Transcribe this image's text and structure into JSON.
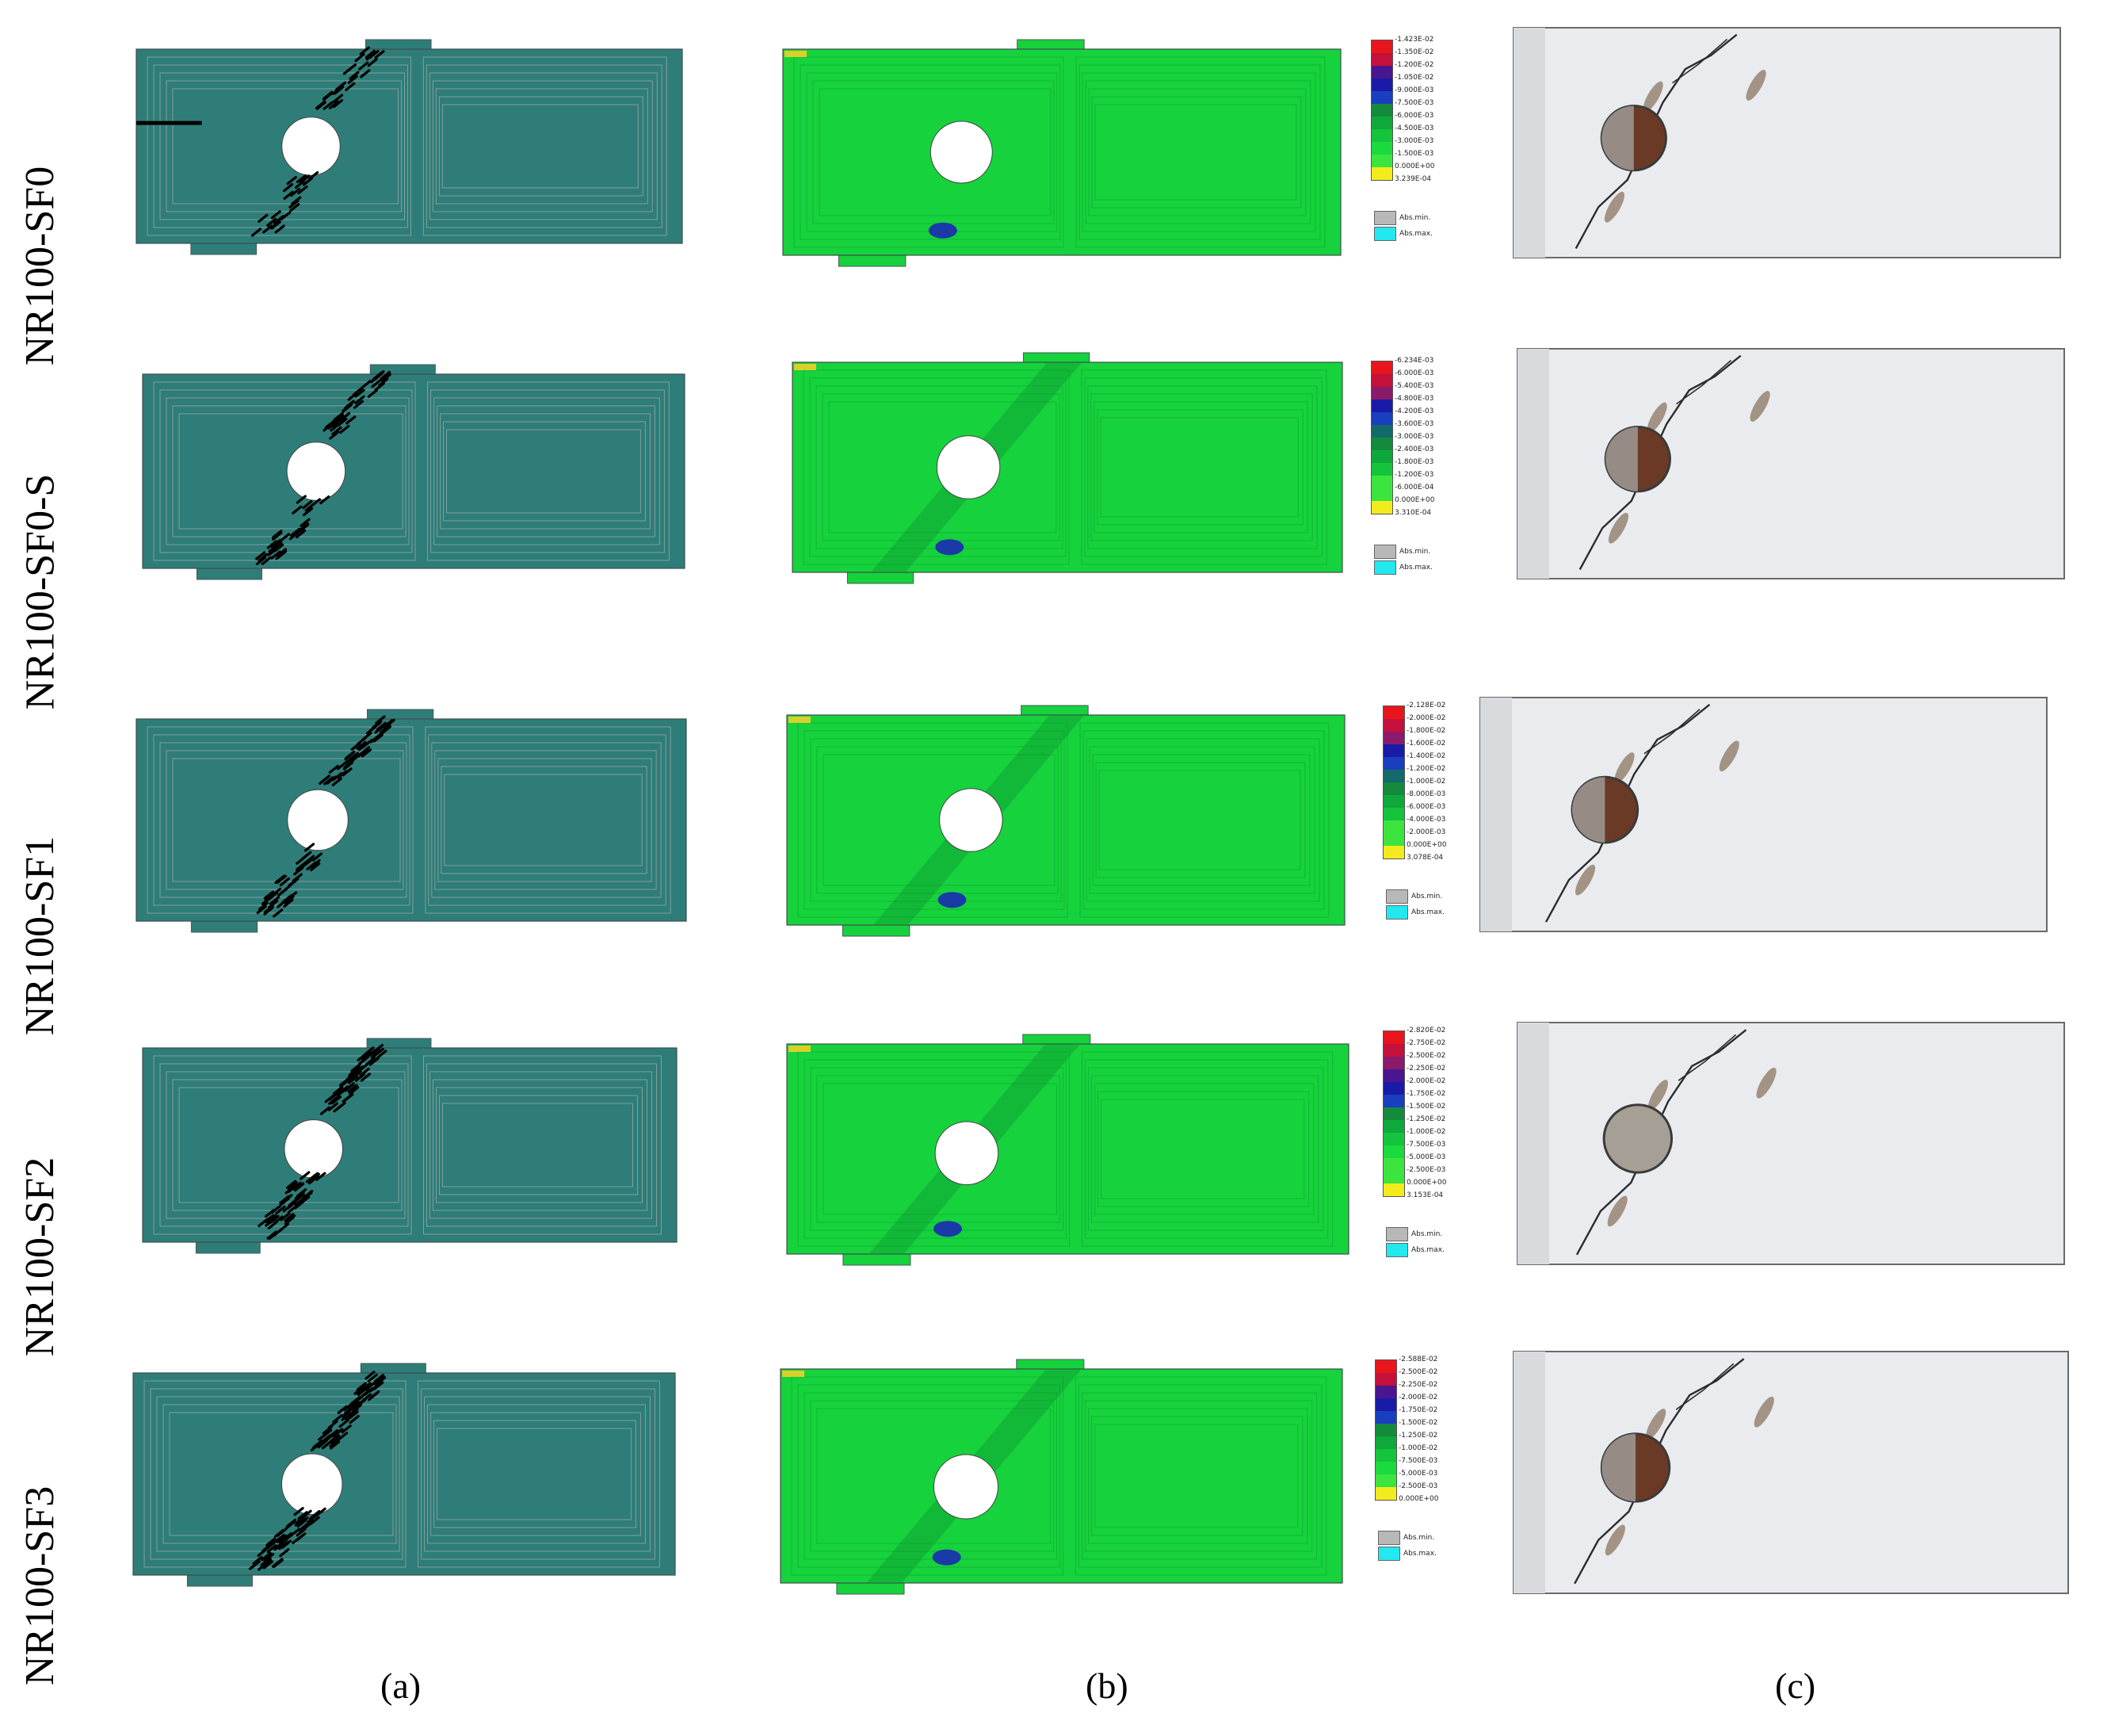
{
  "rows": [
    {
      "label": "NR100-SF0",
      "legend": [
        "-1.423E-02",
        "-1.350E-02",
        "-1.200E-02",
        "-1.050E-02",
        "-9.000E-03",
        "-7.500E-03",
        "-6.000E-03",
        "-4.500E-03",
        "-3.000E-03",
        "-1.500E-03",
        "0.000E+00",
        "3.239E-04"
      ]
    },
    {
      "label": "NR100-SF0-S",
      "legend": [
        "-6.234E-03",
        "-6.000E-03",
        "-5.400E-03",
        "-4.800E-03",
        "-4.200E-03",
        "-3.600E-03",
        "-3.000E-03",
        "-2.400E-03",
        "-1.800E-03",
        "-1.200E-03",
        "-6.000E-04",
        "0.000E+00",
        "3.310E-04"
      ]
    },
    {
      "label": "NR100-SF1",
      "legend": [
        "-2.128E-02",
        "-2.000E-02",
        "-1.800E-02",
        "-1.600E-02",
        "-1.400E-02",
        "-1.200E-02",
        "-1.000E-02",
        "-8.000E-03",
        "-6.000E-03",
        "-4.000E-03",
        "-2.000E-03",
        "0.000E+00",
        "3.078E-04"
      ]
    },
    {
      "label": "NR100-SF2",
      "legend": [
        "-2.820E-02",
        "-2.750E-02",
        "-2.500E-02",
        "-2.250E-02",
        "-2.000E-02",
        "-1.750E-02",
        "-1.500E-02",
        "-1.250E-02",
        "-1.000E-02",
        "-7.500E-03",
        "-5.000E-03",
        "-2.500E-03",
        "0.000E+00",
        "3.153E-04"
      ]
    },
    {
      "label": "NR100-SF3",
      "legend": [
        "-2.588E-02",
        "-2.500E-02",
        "-2.250E-02",
        "-2.000E-02",
        "-1.750E-02",
        "-1.500E-02",
        "-1.250E-02",
        "-1.000E-02",
        "-7.500E-03",
        "-5.000E-03",
        "-2.500E-03",
        "0.000E+00"
      ]
    }
  ],
  "legend_abs": {
    "min": "Abs.min.",
    "max": "Abs.max."
  },
  "legend_colors": {
    "min_swatch": "#b8b8b8",
    "max_swatch": "#22e8f0"
  },
  "colors": {
    "mesh_fill": "#2e7d78",
    "mesh_line": "#9aa6a5",
    "strain_fill": "#16d23c",
    "crack": "#000000",
    "concrete": "#e6e8ea"
  },
  "captions": {
    "a": "(a)",
    "b": "(b)",
    "c": "(c)"
  }
}
